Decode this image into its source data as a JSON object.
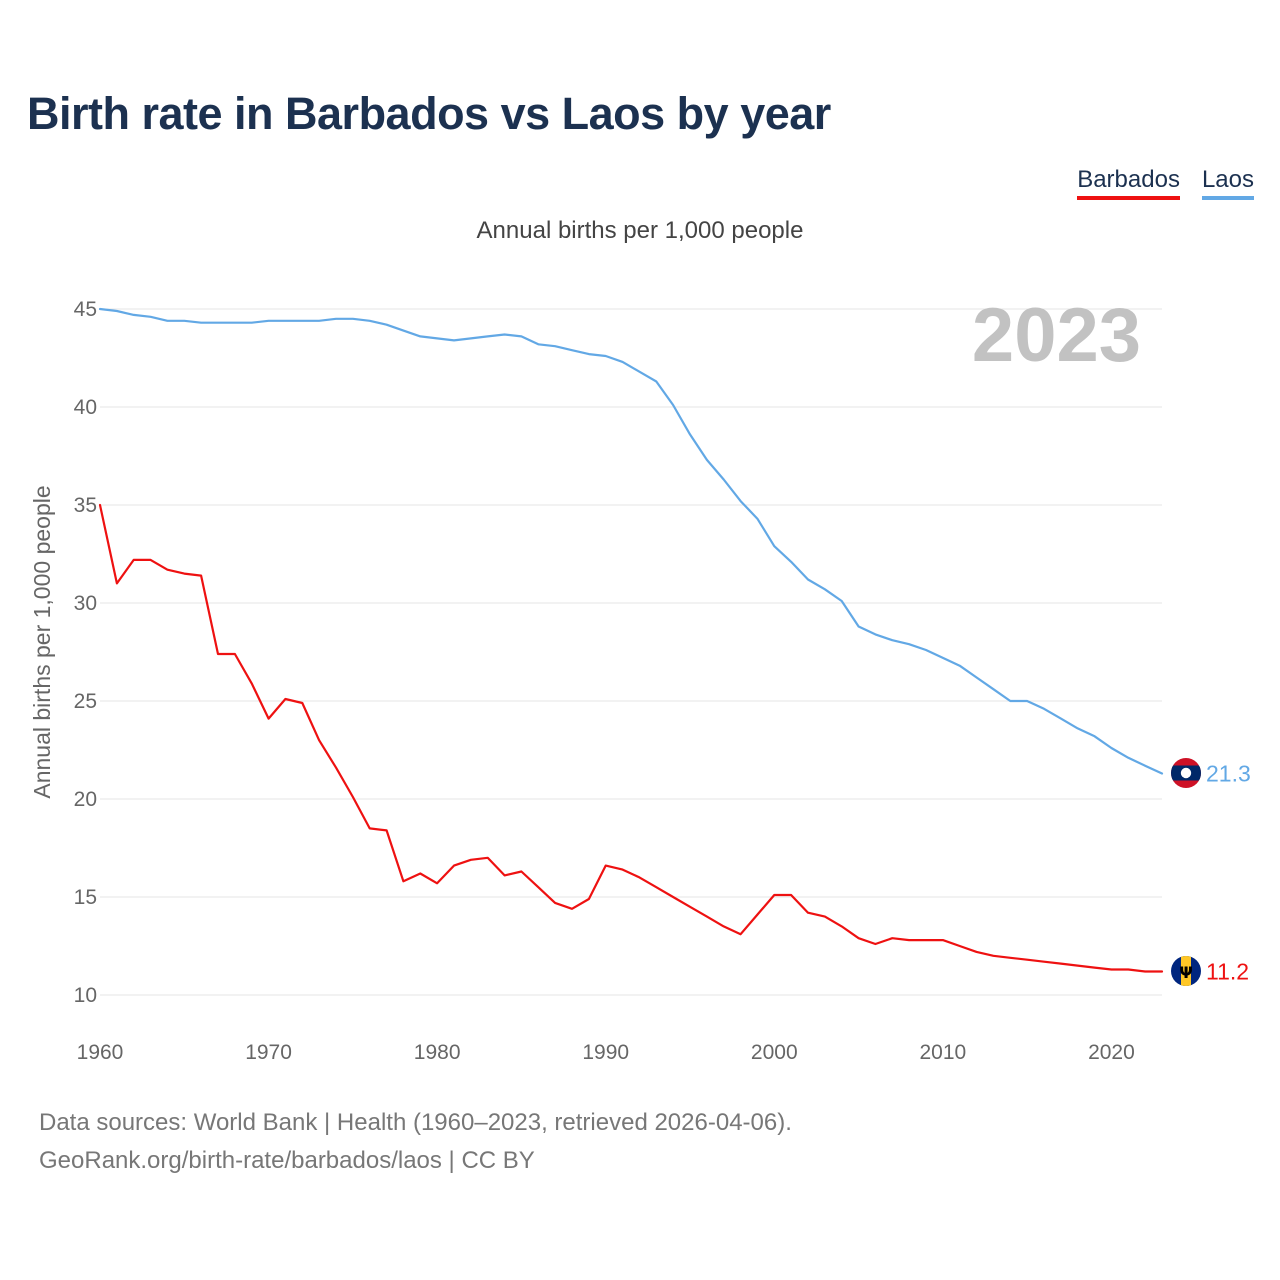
{
  "title": "Birth rate in Barbados vs Laos by year",
  "subtitle": "Annual births per 1,000 people",
  "legend": [
    {
      "name": "Barbados",
      "color": "#ee1111"
    },
    {
      "name": "Laos",
      "color": "#62a8e5"
    }
  ],
  "year_label": "2023",
  "source_line1": "Data sources: World Bank | Health (1960–2023, retrieved 2026-04-06).",
  "source_line2": "GeoRank.org/birth-rate/barbados/laos | CC BY",
  "chart_data": {
    "type": "line",
    "title": "Birth rate in Barbados vs Laos by year",
    "subtitle": "Annual births per 1,000 people",
    "xlabel": "",
    "ylabel": "Annual births per 1,000 people",
    "xlim": [
      1960,
      2023
    ],
    "ylim": [
      10,
      45
    ],
    "x_ticks": [
      "1960",
      "1970",
      "1980",
      "1990",
      "2000",
      "2010",
      "2020"
    ],
    "y_ticks": [
      "10",
      "15",
      "20",
      "25",
      "30",
      "35",
      "40",
      "45"
    ],
    "grid": true,
    "legend_position": "top-right",
    "x": [
      1960,
      1961,
      1962,
      1963,
      1964,
      1965,
      1966,
      1967,
      1968,
      1969,
      1970,
      1971,
      1972,
      1973,
      1974,
      1975,
      1976,
      1977,
      1978,
      1979,
      1980,
      1981,
      1982,
      1983,
      1984,
      1985,
      1986,
      1987,
      1988,
      1989,
      1990,
      1991,
      1992,
      1993,
      1994,
      1995,
      1996,
      1997,
      1998,
      1999,
      2000,
      2001,
      2002,
      2003,
      2004,
      2005,
      2006,
      2007,
      2008,
      2009,
      2010,
      2011,
      2012,
      2013,
      2014,
      2015,
      2016,
      2017,
      2018,
      2019,
      2020,
      2021,
      2022,
      2023
    ],
    "series": [
      {
        "name": "Barbados",
        "color": "#ee1111",
        "end_label": "11.2",
        "values": [
          35.0,
          31.0,
          32.2,
          32.2,
          31.7,
          31.5,
          31.4,
          27.4,
          27.4,
          25.9,
          24.1,
          25.1,
          24.9,
          23.0,
          21.6,
          20.1,
          18.5,
          18.4,
          15.8,
          16.2,
          15.7,
          16.6,
          16.9,
          17.0,
          16.1,
          16.3,
          15.5,
          14.7,
          14.4,
          14.9,
          16.6,
          16.4,
          16.0,
          15.5,
          15.0,
          14.5,
          14.0,
          13.5,
          13.1,
          14.1,
          15.1,
          15.1,
          14.2,
          14.0,
          13.5,
          12.9,
          12.6,
          12.9,
          12.8,
          12.8,
          12.8,
          12.5,
          12.2,
          12.0,
          11.9,
          11.8,
          11.7,
          11.6,
          11.5,
          11.4,
          11.3,
          11.3,
          11.2,
          11.2
        ]
      },
      {
        "name": "Laos",
        "color": "#62a8e5",
        "end_label": "21.3",
        "values": [
          45.0,
          44.9,
          44.7,
          44.6,
          44.4,
          44.4,
          44.3,
          44.3,
          44.3,
          44.3,
          44.4,
          44.4,
          44.4,
          44.4,
          44.5,
          44.5,
          44.4,
          44.2,
          43.9,
          43.6,
          43.5,
          43.4,
          43.5,
          43.6,
          43.7,
          43.6,
          43.2,
          43.1,
          42.9,
          42.7,
          42.6,
          42.3,
          41.8,
          41.3,
          40.1,
          38.6,
          37.3,
          36.3,
          35.2,
          34.3,
          32.9,
          32.1,
          31.2,
          30.7,
          30.1,
          28.8,
          28.4,
          28.1,
          27.9,
          27.6,
          27.2,
          26.8,
          26.2,
          25.6,
          25.0,
          25.0,
          24.6,
          24.1,
          23.6,
          23.2,
          22.6,
          22.1,
          21.7,
          21.3
        ]
      }
    ]
  }
}
